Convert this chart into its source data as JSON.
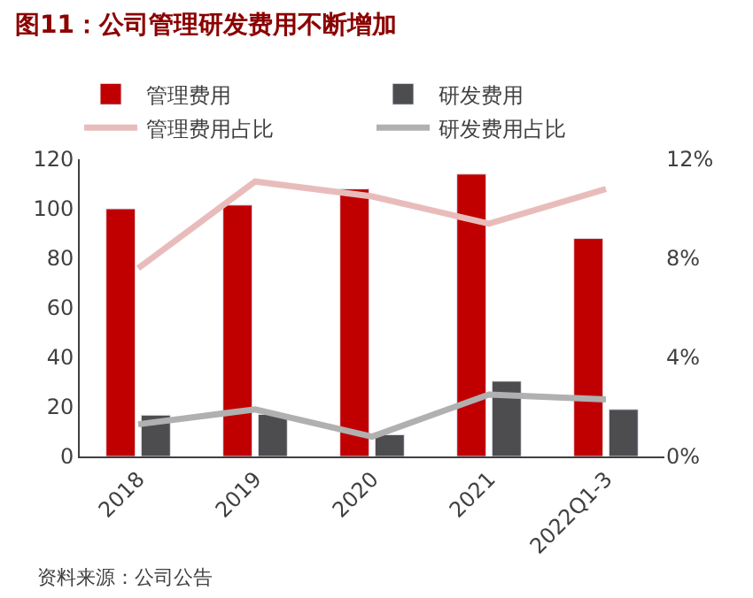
{
  "chart_data": {
    "type": "bar",
    "title": "图11：公司管理研发费用不断增加",
    "categories": [
      "2018",
      "2019",
      "2020",
      "2021",
      "2022Q1-3"
    ],
    "series": [
      {
        "name": "管理费用",
        "color": "#c00000",
        "values": [
          100,
          101.5,
          108,
          114,
          88
        ]
      },
      {
        "name": "研发费用",
        "color": "#4d4d4f",
        "values": [
          16.7,
          17,
          8.8,
          30.4,
          19
        ]
      },
      {
        "name": "管理费用占比",
        "type": "line",
        "axis": "y2",
        "color": "#e9bcbc",
        "values": [
          7.6,
          11.1,
          10.5,
          9.4,
          10.8
        ]
      },
      {
        "name": "研发费用占比",
        "type": "line",
        "axis": "y2",
        "color": "#b0b0b0",
        "values": [
          1.3,
          1.9,
          0.8,
          2.5,
          2.3
        ]
      }
    ],
    "ylim": [
      0,
      120
    ],
    "yticks": [
      0,
      20,
      40,
      60,
      80,
      100,
      120
    ],
    "y2lim": [
      0,
      12
    ],
    "y2ticks": [
      {
        "value": 0,
        "label": "0%"
      },
      {
        "value": 4,
        "label": "4%"
      },
      {
        "value": 8,
        "label": "8%"
      },
      {
        "value": 12,
        "label": "12%"
      }
    ],
    "legend": "top",
    "marker": "none",
    "line_style": "solid",
    "annotations": [
      "资料来源：公司公告"
    ]
  }
}
